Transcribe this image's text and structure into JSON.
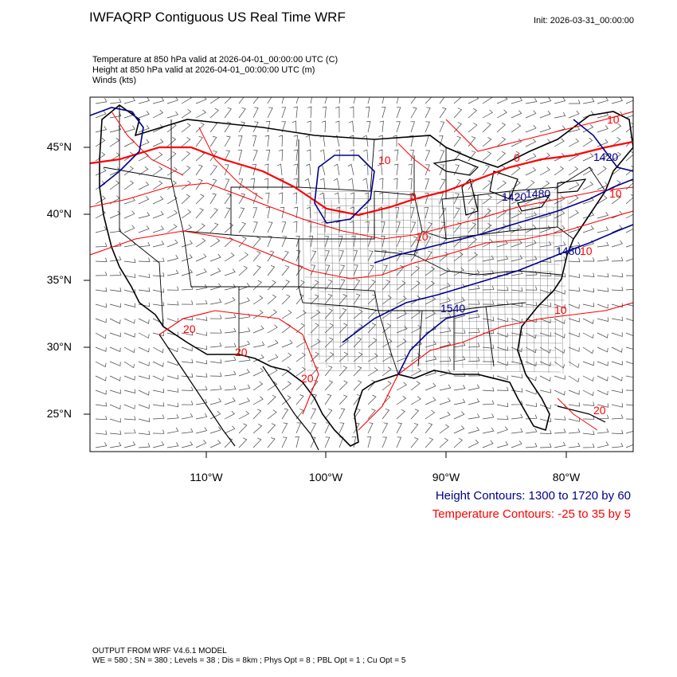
{
  "header": {
    "title": "IWFAQRP Contiguous US Real Time WRF",
    "init": "Init: 2026-03-31_00:00:00"
  },
  "subtitle": {
    "line1": "Temperature at 850 hPa valid at 2026-04-01_00:00:00 UTC   (C)",
    "line2": "Height at 850 hPa valid at 2026-04-01_00:00:00 UTC   (m)",
    "line3": "Winds   (kts)"
  },
  "map": {
    "lat_labels": [
      "45°N",
      "40°N",
      "35°N",
      "30°N",
      "25°N"
    ],
    "lon_labels": [
      "110°W",
      "100°W",
      "90°W",
      "80°W"
    ],
    "temp_labels": [
      "10",
      "0",
      "10",
      "20",
      "20",
      "20",
      "10",
      "0",
      "10",
      "10",
      "20",
      "10"
    ],
    "height_labels": [
      "1420",
      "1540",
      "1480",
      "1420",
      "1480"
    ],
    "colors": {
      "height": "#00008b",
      "temperature": "#ff0000",
      "border": "#000000"
    }
  },
  "legend": {
    "height": "Height Contours: 1300 to 1720 by 60",
    "temperature": "Temperature Contours: -25 to 35 by 5"
  },
  "footer": {
    "line1": "OUTPUT FROM WRF V4.6.1 MODEL",
    "line2": "WE = 580 ; SN = 380 ; Levels = 38 ; Dis = 8km ; Phys Opt = 8 ; PBL Opt = 1 ; Cu Opt = 5"
  }
}
